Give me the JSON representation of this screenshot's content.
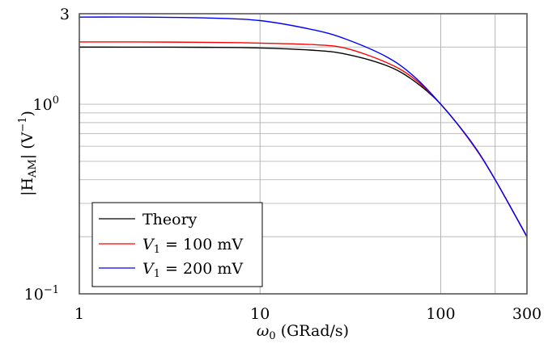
{
  "chart_data": {
    "type": "line",
    "xlabel": "ω0 (GRad/s)",
    "ylabel": "|HAM| (V−1)",
    "xscale": "log",
    "yscale": "log",
    "xlim": [
      1,
      300
    ],
    "ylim": [
      0.1,
      3
    ],
    "x_ticks": [
      {
        "value": 1,
        "label": "1"
      },
      {
        "value": 10,
        "label": "10"
      },
      {
        "value": 100,
        "label": "100"
      },
      {
        "value": 300,
        "label": "300"
      }
    ],
    "y_ticks": [
      {
        "value": 0.1,
        "label": "10",
        "exp": "−1"
      },
      {
        "value": 1,
        "label": "10",
        "exp": "0"
      },
      {
        "value": 3,
        "label": "3",
        "exp": ""
      }
    ],
    "x_grid": [
      10,
      100,
      200
    ],
    "y_grid": [
      0.2,
      0.3,
      0.4,
      0.5,
      0.6,
      0.7,
      0.8,
      0.9,
      1,
      2
    ],
    "grid": true,
    "legend_position": "bottom-left",
    "x": [
      1,
      2,
      5,
      10,
      20,
      30,
      50,
      70,
      100,
      150,
      200,
      300
    ],
    "series": [
      {
        "name": "Theory",
        "color": "#000000",
        "values": [
          2.0,
          1.999,
          1.995,
          1.98,
          1.923,
          1.835,
          1.6,
          1.342,
          1.0,
          0.615,
          0.4,
          0.2
        ]
      },
      {
        "name": "V1 = 100 mV",
        "color": "#ff0000",
        "values": [
          2.13,
          2.13,
          2.12,
          2.1,
          2.06,
          1.97,
          1.66,
          1.38,
          1.0,
          0.615,
          0.4,
          0.2
        ]
      },
      {
        "name": "V1 = 200 mV",
        "color": "#0000ff",
        "values": [
          2.88,
          2.88,
          2.85,
          2.76,
          2.46,
          2.2,
          1.78,
          1.42,
          1.0,
          0.62,
          0.4,
          0.2
        ]
      }
    ]
  },
  "legend": {
    "theory": "Theory",
    "v1_sym": "V",
    "v1_sub": "1",
    "v100": " = 100 mV",
    "v200": " = 200 mV"
  },
  "labels": {
    "x_omega": "ω",
    "x_sub": "0",
    "x_unit": " (GRad/s)",
    "y_h": "|H",
    "y_sub": "AM",
    "y_rest": "| (V",
    "y_exp": "−1",
    "y_close": ")"
  }
}
